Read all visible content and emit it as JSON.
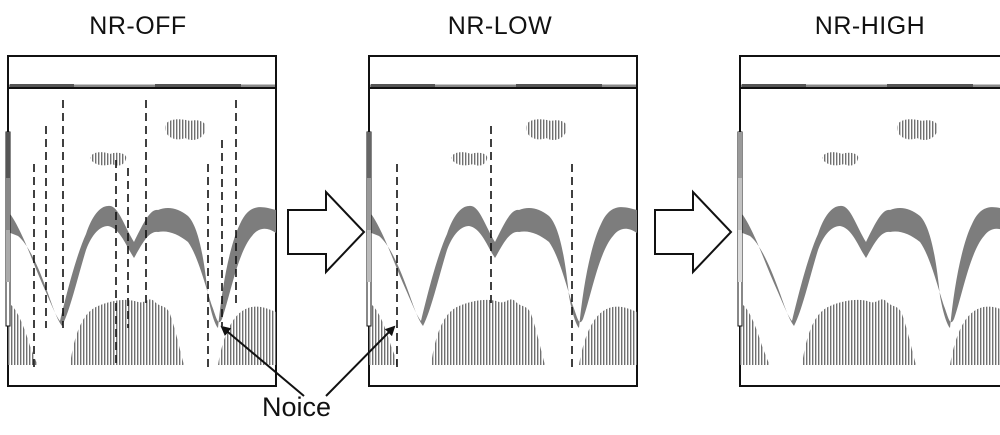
{
  "panels": [
    {
      "title": "NR-OFF"
    },
    {
      "title": "NR-LOW"
    },
    {
      "title": "NR-HIGH"
    }
  ],
  "annotation": {
    "label": "Noice"
  }
}
